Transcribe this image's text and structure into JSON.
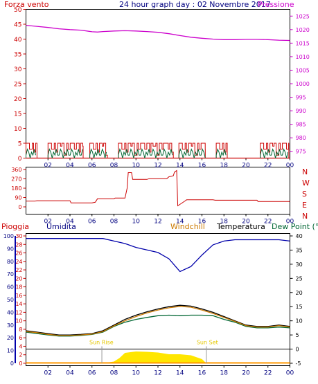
{
  "header": {
    "left_label": "Forza vento",
    "title": "24 hour graph day : 02 Novembre 2017",
    "right_label": "Pressione"
  },
  "colors": {
    "red": "#cc0000",
    "magenta": "#cc00cc",
    "navy": "#000080",
    "blue": "#0000aa",
    "green": "#006633",
    "orange": "#cc7a00",
    "black": "#000000",
    "yellow": "#ffe600",
    "sun_label": "#e6c800"
  },
  "x_ticks": [
    "02",
    "04",
    "06",
    "08",
    "10",
    "12",
    "14",
    "16",
    "18",
    "20",
    "22",
    "00"
  ],
  "chart_data": [
    {
      "type": "line",
      "name": "wind-pressure",
      "left_axis": {
        "label": "Forza vento",
        "ylim": [
          0,
          50
        ],
        "ticks": [
          0,
          5,
          10,
          15,
          20,
          25,
          30,
          35,
          40,
          45,
          50
        ]
      },
      "right_axis": {
        "label": "Pressione",
        "ylim": [
          972.5,
          1027.5
        ],
        "ticks": [
          975,
          980,
          985,
          990,
          995,
          1000,
          1005,
          1010,
          1015,
          1020,
          1025
        ]
      },
      "x": [
        0,
        1,
        2,
        3,
        4,
        5,
        6,
        6.5,
        7,
        8,
        9,
        10,
        11,
        12,
        13,
        14,
        15,
        16,
        17,
        18,
        19,
        20,
        21,
        22,
        23,
        24
      ],
      "series": [
        {
          "name": "Pressione",
          "axis": "right",
          "values": [
            1021.6,
            1021.2,
            1020.8,
            1020.3,
            1020,
            1019.8,
            1019.2,
            1019.1,
            1019.3,
            1019.5,
            1019.6,
            1019.5,
            1019.3,
            1019,
            1018.5,
            1017.8,
            1017.2,
            1016.8,
            1016.5,
            1016.3,
            1016.3,
            1016.4,
            1016.4,
            1016.3,
            1016.1,
            1016
          ]
        }
      ],
      "wind_gust_segments": [
        [
          0,
          1
        ],
        [
          2,
          5.2
        ],
        [
          5.8,
          7.4
        ],
        [
          8.4,
          13.4
        ],
        [
          13.9,
          16.3
        ],
        [
          17.3,
          18.3
        ],
        [
          21.3,
          23.9
        ]
      ],
      "wind_gust_values": [
        0,
        5
      ],
      "grid": false
    },
    {
      "type": "line",
      "name": "wind-direction",
      "y_labels": [
        "N",
        "W",
        "S",
        "E",
        "N"
      ],
      "ylim": [
        0,
        360
      ],
      "ticks": [
        0,
        90,
        180,
        270,
        360
      ],
      "x": [
        0,
        0.8,
        1,
        3,
        4,
        4.1,
        6,
        6.3,
        6.5,
        8,
        8.1,
        9,
        9.2,
        9.3,
        9.6,
        9.7,
        11,
        11.2,
        12.8,
        13,
        13.4,
        13.5,
        13.7,
        13.8,
        14.5,
        14.6,
        17,
        17.2,
        21,
        21.1,
        24
      ],
      "series": [
        {
          "name": "Direzione",
          "values": [
            56,
            56,
            59,
            59,
            59,
            38,
            38,
            45,
            78,
            78,
            85,
            85,
            180,
            330,
            330,
            265,
            265,
            272,
            272,
            290,
            300,
            335,
            350,
            10,
            60,
            68,
            68,
            64,
            64,
            52,
            52
          ]
        }
      ],
      "grid": false
    },
    {
      "type": "line",
      "name": "temp-humidity-rain",
      "legend": [
        "Pioggia",
        "Umidita",
        "Windchill",
        "Temperatura",
        "Dew Point (°C"
      ],
      "axis_umidita": {
        "ylim": [
          0,
          100
        ],
        "ticks": [
          0,
          10,
          20,
          30,
          40,
          50,
          60,
          70,
          80,
          90,
          100
        ]
      },
      "axis_pioggia": {
        "ylim": [
          0,
          30
        ],
        "ticks": [
          0,
          2,
          4,
          6,
          8,
          10,
          12,
          14,
          16,
          18,
          20,
          22,
          24,
          26,
          28,
          30
        ]
      },
      "axis_temp": {
        "ylim": [
          -5,
          40
        ],
        "ticks": [
          -5,
          0,
          5,
          10,
          15,
          20,
          25,
          30,
          35,
          40
        ]
      },
      "x": [
        0,
        1,
        2,
        3,
        4,
        5,
        6,
        7,
        8,
        9,
        10,
        11,
        12,
        13,
        14,
        15,
        16,
        17,
        18,
        19,
        20,
        21,
        22,
        23,
        24
      ],
      "series": [
        {
          "name": "Umidita",
          "axis": "umidita",
          "values": [
            98,
            98,
            98,
            98,
            98,
            98,
            98,
            98,
            96,
            94,
            91,
            89,
            87,
            82,
            72,
            76,
            85,
            93,
            96,
            97,
            97,
            97,
            97,
            97,
            96
          ]
        },
        {
          "name": "Temperatura",
          "axis": "temp",
          "values": [
            6.5,
            6,
            5.5,
            5,
            5,
            5.2,
            5.5,
            6.5,
            8.5,
            10.5,
            12,
            13.2,
            14.2,
            15,
            15.5,
            15.2,
            14.2,
            13,
            11.5,
            10,
            8.5,
            8,
            8,
            8.5,
            8
          ]
        },
        {
          "name": "Dew Point",
          "axis": "temp",
          "values": [
            6,
            5.5,
            5,
            4.6,
            4.6,
            4.8,
            5.2,
            6,
            8,
            9.5,
            10.5,
            11.2,
            11.8,
            12,
            11.8,
            12,
            12,
            11.8,
            10.5,
            9.5,
            8,
            7.5,
            7.5,
            7.8,
            7.5
          ]
        },
        {
          "name": "Windchill",
          "axis": "temp",
          "values": [
            6.2,
            5.8,
            5.2,
            4.8,
            4.8,
            5,
            5.3,
            6.2,
            8.2,
            10,
            11.5,
            12.8,
            13.8,
            14.6,
            15.1,
            14.8,
            13.8,
            12.6,
            11.2,
            9.8,
            8.3,
            7.8,
            7.8,
            8.3,
            7.8
          ]
        }
      ],
      "solar": {
        "x": [
          6.9,
          8,
          8.5,
          9,
          10,
          11,
          12,
          13,
          14,
          15,
          16,
          16.4
        ],
        "values": [
          0,
          0.5,
          1.5,
          3,
          3.4,
          3.3,
          3.1,
          2.6,
          2.6,
          2.3,
          1.2,
          0
        ]
      },
      "sun_rise_label": "Sun Rise",
      "sun_set_label": "Sun Set",
      "sun_rise_x": 6.9,
      "sun_set_x": 16.4,
      "rain_total": 0,
      "grid": false
    }
  ]
}
